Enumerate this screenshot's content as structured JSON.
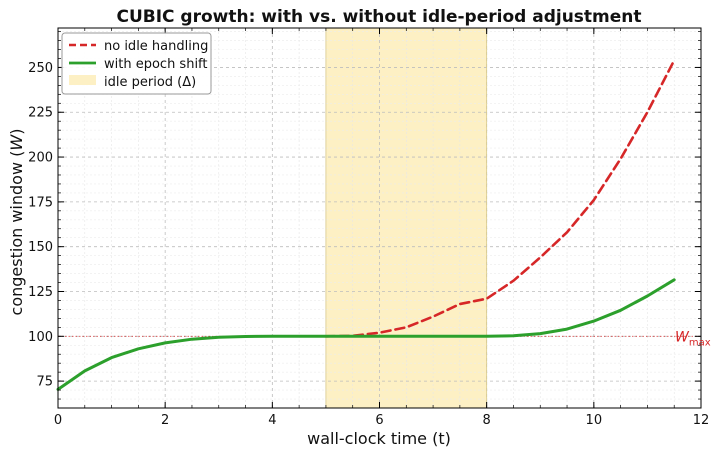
{
  "chart_data": {
    "type": "line",
    "title": "CUBIC growth: with vs. without idle-period adjustment",
    "xlabel": "wall-clock time (t)",
    "ylabel_prefix": "congestion window (",
    "ylabel_var": "W",
    "ylabel_suffix": ")",
    "xlim": [
      0,
      12
    ],
    "ylim": [
      60,
      272
    ],
    "xticks": [
      0,
      2,
      4,
      6,
      8,
      10,
      12
    ],
    "yticks": [
      75,
      100,
      125,
      150,
      175,
      200,
      225,
      250
    ],
    "grid": true,
    "legend_position": "top-left",
    "idle_period": {
      "start": 5,
      "end": 8,
      "label": "idle period (Δ)",
      "color": "#fdf0c4"
    },
    "wmax": {
      "value": 100,
      "label_main": "W",
      "label_sub": "max",
      "color": "#d62728"
    },
    "series": [
      {
        "name": "no idle handling",
        "color": "#d62728",
        "style": "dashed",
        "x": [
          5,
          5.5,
          6,
          6.5,
          7,
          7.5,
          8,
          8.5,
          9,
          9.5,
          10,
          10.5,
          11,
          11.5
        ],
        "y": [
          100,
          100.3,
          102,
          105,
          111,
          118,
          121,
          131,
          144,
          158,
          176,
          199,
          225,
          254
        ]
      },
      {
        "name": "with epoch shift",
        "color": "#2ca02c",
        "style": "solid",
        "x": [
          0,
          0.5,
          1,
          1.5,
          2,
          2.5,
          3,
          3.5,
          4,
          4.5,
          5,
          5.5,
          6,
          6.5,
          7,
          7.5,
          8,
          8.5,
          9,
          9.5,
          10,
          10.5,
          11,
          11.5
        ],
        "y": [
          70.4,
          80.7,
          88.1,
          93.0,
          96.3,
          98.4,
          99.5,
          99.9,
          100,
          100,
          100,
          100,
          100,
          100,
          100,
          100,
          100,
          100.3,
          101.5,
          104,
          108.5,
          114.5,
          122.5,
          131.5
        ]
      }
    ]
  }
}
